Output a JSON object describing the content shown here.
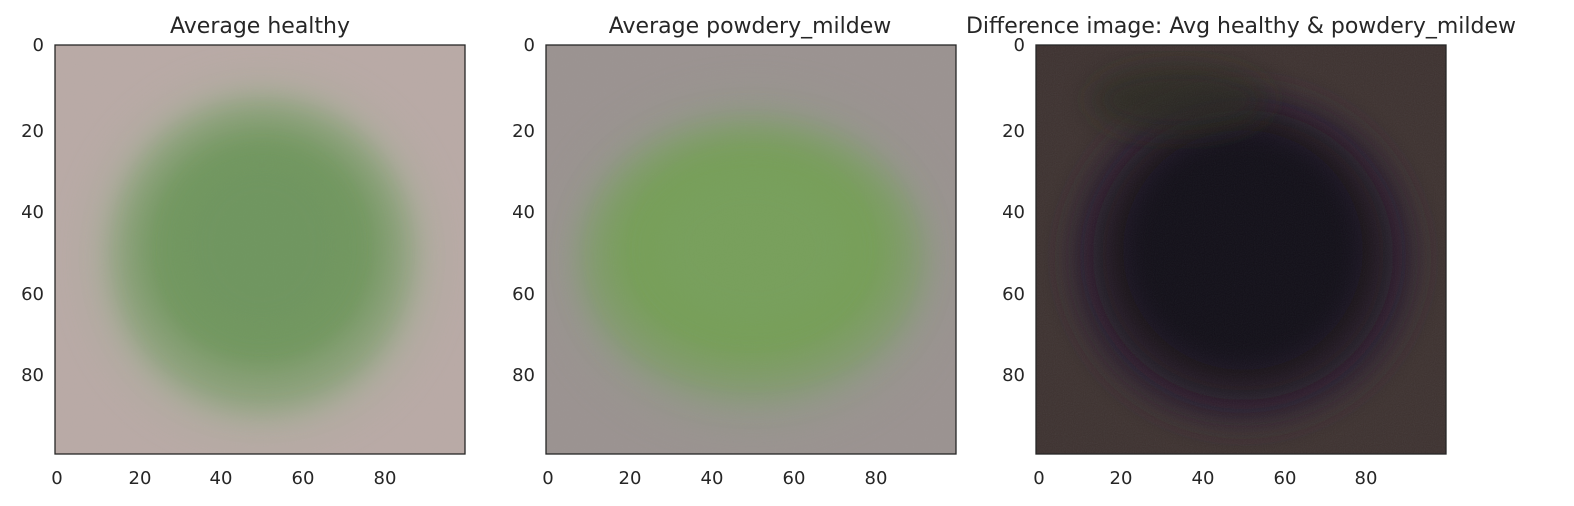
{
  "chart_data": [
    {
      "type": "heatmap",
      "title": "Average healthy",
      "xlabel": "",
      "ylabel": "",
      "xlim": [
        0,
        100
      ],
      "ylim": [
        100,
        0
      ],
      "xticks": [
        0,
        20,
        40,
        60,
        80
      ],
      "yticks": [
        0,
        20,
        40,
        60,
        80
      ],
      "grid": false,
      "colors": {
        "background": "#b9aaa6",
        "leaf": "#5a9248",
        "mid": "#86a477"
      }
    },
    {
      "type": "heatmap",
      "title": "Average powdery_mildew",
      "xlabel": "",
      "ylabel": "",
      "xlim": [
        0,
        100
      ],
      "ylim": [
        100,
        0
      ],
      "xticks": [
        0,
        20,
        40,
        60,
        80
      ],
      "yticks": [
        0,
        20,
        40,
        60,
        80
      ],
      "grid": false,
      "colors": {
        "background": "#9a9290",
        "leaf": "#6ea24c",
        "mid": "#8a9a7a"
      }
    },
    {
      "type": "heatmap",
      "title": "Difference image: Avg healthy & powdery_mildew",
      "xlabel": "",
      "ylabel": "",
      "xlim": [
        0,
        100
      ],
      "ylim": [
        100,
        0
      ],
      "xticks": [
        0,
        20,
        40,
        60,
        80
      ],
      "yticks": [
        0,
        20,
        40,
        60,
        80
      ],
      "grid": false,
      "colors": {
        "background": "#3e3230",
        "leaf": "#050308",
        "mid": "#2a1e32"
      }
    }
  ]
}
